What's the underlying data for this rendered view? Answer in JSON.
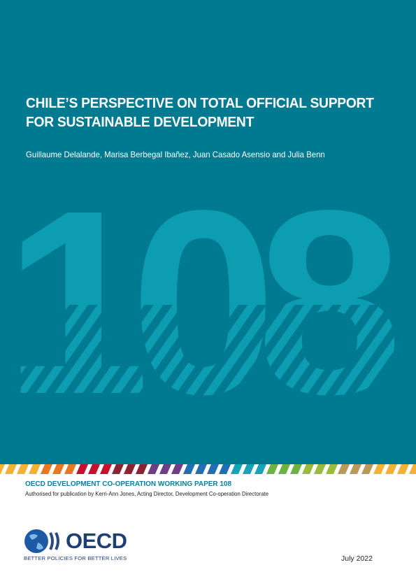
{
  "cover": {
    "title_line1": "CHILE’S PERSPECTIVE ON TOTAL OFFICIAL SUPPORT",
    "title_line2": "FOR SUSTAINABLE DEVELOPMENT",
    "authors": "Guillaume Delalande, Marisa Berbegal Ibañez, Juan Casado Asensio and Julia Benn",
    "paper_number": "108",
    "background_color": "#007a91",
    "number_color": "#0d9db2"
  },
  "footer": {
    "series": "OECD DEVELOPMENT CO-OPERATION WORKING PAPER 108",
    "authorisation": "Authorised for publication by Kerri-Ann Jones, Acting Director, Development Co-operation Directorate",
    "logo_text": "OECD",
    "tagline": "BETTER POLICIES FOR BETTER LIVES",
    "date": "July 2022"
  }
}
